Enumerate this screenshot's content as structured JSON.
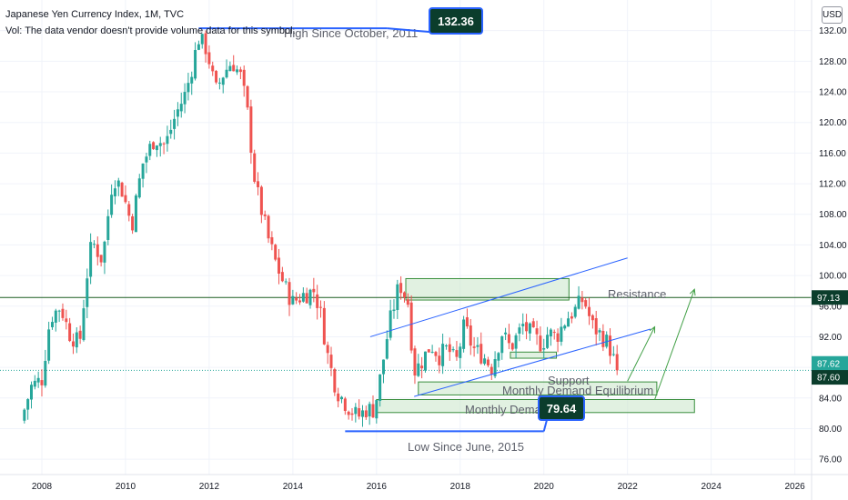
{
  "header": {
    "title": "Japanese Yen Currency Index, 1M, TVC",
    "volume_note": "Vol: The data vendor doesn't provide volume data for this symbol."
  },
  "currency_button": "USD",
  "colors": {
    "up": "#26a69a",
    "down": "#ef5350",
    "zone_fill": "#c8e6c9",
    "zone_stroke": "#388e3c",
    "channel": "#2962ff",
    "arrow": "#43a047",
    "resistance_line": "#1b5e20",
    "dark_badge": "#0b3d2c",
    "current_badge": "#26a69a"
  },
  "annotations": {
    "high_label": "High Since October, 2011",
    "high_value": "132.36",
    "low_label": "Low Since June, 2015",
    "low_value": "79.64",
    "resistance": "Resistance",
    "support": "Support",
    "equilibrium": "Monthly Demand Equilibrium",
    "demand": "Monthly Demand"
  },
  "price_labels": {
    "resistance_level": "97.13",
    "last_price": "87.62",
    "equilibrium_level": "87.60"
  },
  "chart_data": {
    "type": "candlestick",
    "title": "Japanese Yen Currency Index, 1M, TVC",
    "interval": "1M",
    "ylim": [
      74,
      136
    ],
    "xlim": [
      2007.0,
      2026.4
    ],
    "y_ticks": [
      "76.00",
      "80.00",
      "84.00",
      "88.00",
      "92.00",
      "96.00",
      "100.00",
      "104.00",
      "108.00",
      "112.00",
      "116.00",
      "120.00",
      "124.00",
      "128.00",
      "132.00"
    ],
    "x_ticks": [
      "2008",
      "2010",
      "2012",
      "2014",
      "2016",
      "2018",
      "2020",
      "2022",
      "2024",
      "2026"
    ],
    "anchors": [
      [
        2007.5,
        81.0
      ],
      [
        2007.75,
        85.5
      ],
      [
        2008.0,
        86.5
      ],
      [
        2008.2,
        94.5
      ],
      [
        2008.45,
        96.0
      ],
      [
        2008.65,
        92.5
      ],
      [
        2008.9,
        91.0
      ],
      [
        2009.05,
        99.0
      ],
      [
        2009.2,
        104.5
      ],
      [
        2009.45,
        102.0
      ],
      [
        2009.7,
        113.0
      ],
      [
        2009.9,
        111.5
      ],
      [
        2010.15,
        106.5
      ],
      [
        2010.4,
        114.5
      ],
      [
        2010.7,
        118.0
      ],
      [
        2010.95,
        117.0
      ],
      [
        2011.2,
        121.0
      ],
      [
        2011.45,
        124.0
      ],
      [
        2011.75,
        131.0
      ],
      [
        2011.95,
        129.5
      ],
      [
        2012.15,
        124.0
      ],
      [
        2012.35,
        126.5
      ],
      [
        2012.55,
        128.0
      ],
      [
        2012.75,
        126.0
      ],
      [
        2012.9,
        122.0
      ],
      [
        2013.1,
        112.0
      ],
      [
        2013.4,
        105.0
      ],
      [
        2013.6,
        101.5
      ],
      [
        2013.85,
        98.0
      ],
      [
        2014.0,
        96.5
      ],
      [
        2014.25,
        97.5
      ],
      [
        2014.5,
        98.0
      ],
      [
        2014.65,
        95.5
      ],
      [
        2014.85,
        89.0
      ],
      [
        2015.05,
        85.0
      ],
      [
        2015.3,
        83.0
      ],
      [
        2015.55,
        81.5
      ],
      [
        2015.75,
        82.5
      ],
      [
        2015.95,
        82.5
      ],
      [
        2016.1,
        87.0
      ],
      [
        2016.3,
        93.5
      ],
      [
        2016.55,
        99.0
      ],
      [
        2016.75,
        96.5
      ],
      [
        2016.9,
        87.5
      ],
      [
        2017.05,
        88.5
      ],
      [
        2017.3,
        91.0
      ],
      [
        2017.5,
        89.5
      ],
      [
        2017.7,
        90.5
      ],
      [
        2017.9,
        88.5
      ],
      [
        2018.1,
        93.5
      ],
      [
        2018.3,
        90.5
      ],
      [
        2018.55,
        89.5
      ],
      [
        2018.75,
        88.0
      ],
      [
        2019.0,
        92.5
      ],
      [
        2019.2,
        90.5
      ],
      [
        2019.5,
        93.5
      ],
      [
        2019.75,
        92.0
      ],
      [
        2019.95,
        91.0
      ],
      [
        2020.1,
        92.5
      ],
      [
        2020.3,
        92.0
      ],
      [
        2020.55,
        94.5
      ],
      [
        2020.75,
        95.5
      ],
      [
        2020.95,
        97.0
      ],
      [
        2021.15,
        93.5
      ],
      [
        2021.4,
        92.0
      ],
      [
        2021.55,
        91.0
      ],
      [
        2021.75,
        87.62
      ]
    ],
    "high": {
      "date": "2011-10",
      "value": 132.36
    },
    "low": {
      "date": "2015-06",
      "value": 79.64
    },
    "levels": {
      "resistance": 97.13,
      "equilibrium": 87.6,
      "last": 87.62
    },
    "zones": [
      {
        "name": "Resistance",
        "x0": 2016.7,
        "x1": 2020.6,
        "y0": 96.8,
        "y1": 99.6
      },
      {
        "name": "Support",
        "x0": 2019.2,
        "x1": 2020.3,
        "y0": 89.2,
        "y1": 90.0
      },
      {
        "name": "Monthly Demand Equilibrium",
        "x0": 2017.0,
        "x1": 2022.7,
        "y0": 84.4,
        "y1": 86.1
      },
      {
        "name": "Monthly Demand",
        "x0": 2016.0,
        "x1": 2023.6,
        "y0": 82.1,
        "y1": 83.8
      }
    ],
    "channel_lines": [
      {
        "x0": 2015.85,
        "y0": 92.0,
        "x1": 2022.0,
        "y1": 102.3
      },
      {
        "x0": 2016.9,
        "y0": 84.2,
        "x1": 2022.55,
        "y1": 93.0
      }
    ],
    "projection_arrows": [
      {
        "x0": 2022.0,
        "y0": 86.2,
        "x1": 2022.65,
        "y1": 93.3
      },
      {
        "x0": 2022.65,
        "y0": 83.8,
        "x1": 2023.6,
        "y1": 98.2
      }
    ],
    "high_line": {
      "x0": 2011.75,
      "x1": 2016.25,
      "y": 132.3
    },
    "low_line": {
      "x0": 2015.25,
      "x1": 2020.0,
      "y": 79.65
    }
  }
}
